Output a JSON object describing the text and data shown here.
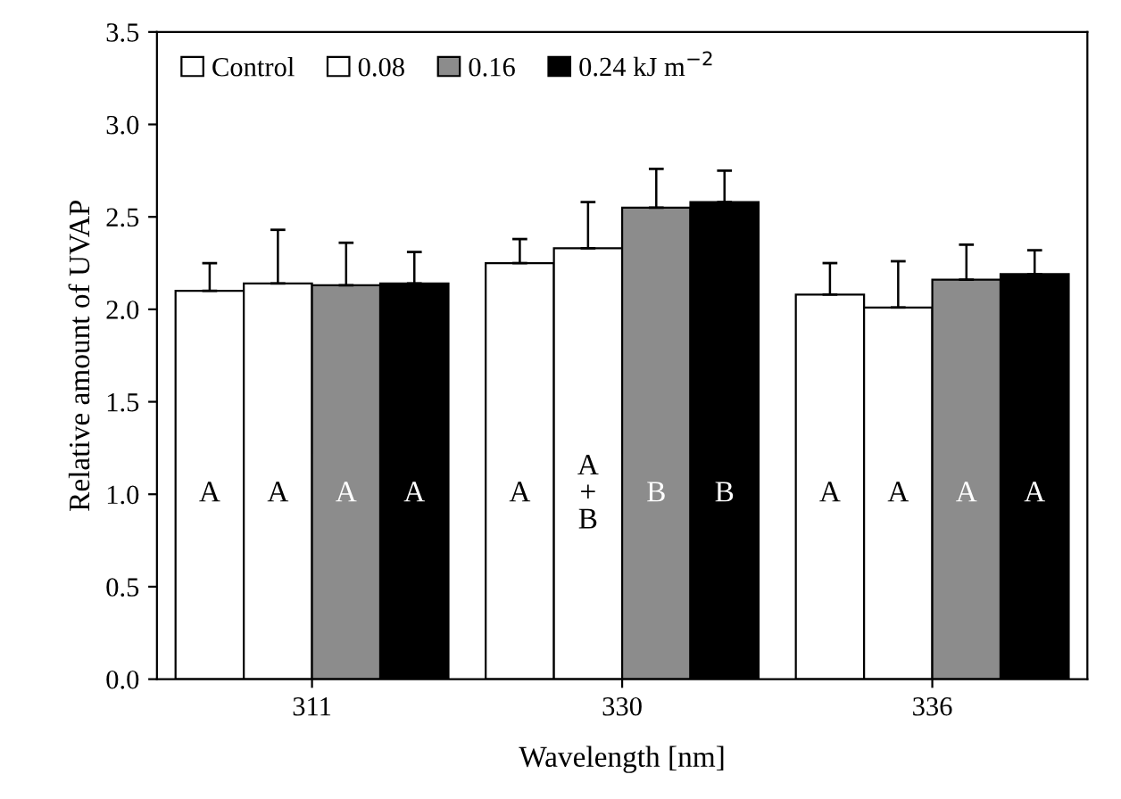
{
  "chart_data": {
    "type": "bar",
    "xlabel": "Wavelength [nm]",
    "ylabel": "Relative amount of UVAP",
    "categories": [
      "311",
      "330",
      "336"
    ],
    "series": [
      {
        "name": "Control",
        "color": "#ffffff",
        "values": [
          2.1,
          2.25,
          2.08
        ],
        "errors": [
          [
            2.1,
            2.25
          ],
          [
            2.25,
            2.38
          ],
          [
            2.08,
            2.25
          ]
        ]
      },
      {
        "name": "0.08",
        "color": "#ffffff",
        "values": [
          2.14,
          2.33,
          2.01
        ],
        "errors": [
          [
            2.14,
            2.43
          ],
          [
            2.33,
            2.58
          ],
          [
            2.01,
            2.26
          ]
        ]
      },
      {
        "name": "0.16",
        "color": "#8c8c8c",
        "values": [
          2.13,
          2.55,
          2.16
        ],
        "errors": [
          [
            2.13,
            2.36
          ],
          [
            2.55,
            2.76
          ],
          [
            2.16,
            2.35
          ]
        ]
      },
      {
        "name": "0.24 kJ m$^{−2}$",
        "color": "#000000",
        "values": [
          2.14,
          2.58,
          2.19
        ],
        "errors": [
          [
            2.14,
            2.31
          ],
          [
            2.58,
            2.75
          ],
          [
            2.19,
            2.32
          ]
        ]
      }
    ],
    "annotations": [
      "A",
      "A",
      "A",
      "A",
      "A",
      "A\n+\nB",
      "B",
      "B",
      "A",
      "A",
      "A",
      "A"
    ],
    "ylim": [
      0,
      3.5
    ],
    "yticks": [
      {
        "value": 0,
        "label": "0.0"
      },
      0.5,
      {
        "value": 1,
        "label": "1.0"
      },
      1.5,
      {
        "value": 2,
        "label": "2.0"
      },
      2.5,
      {
        "value": 3,
        "label": "3.0"
      },
      3.5
    ],
    "grid": false,
    "legend": "top left"
  }
}
